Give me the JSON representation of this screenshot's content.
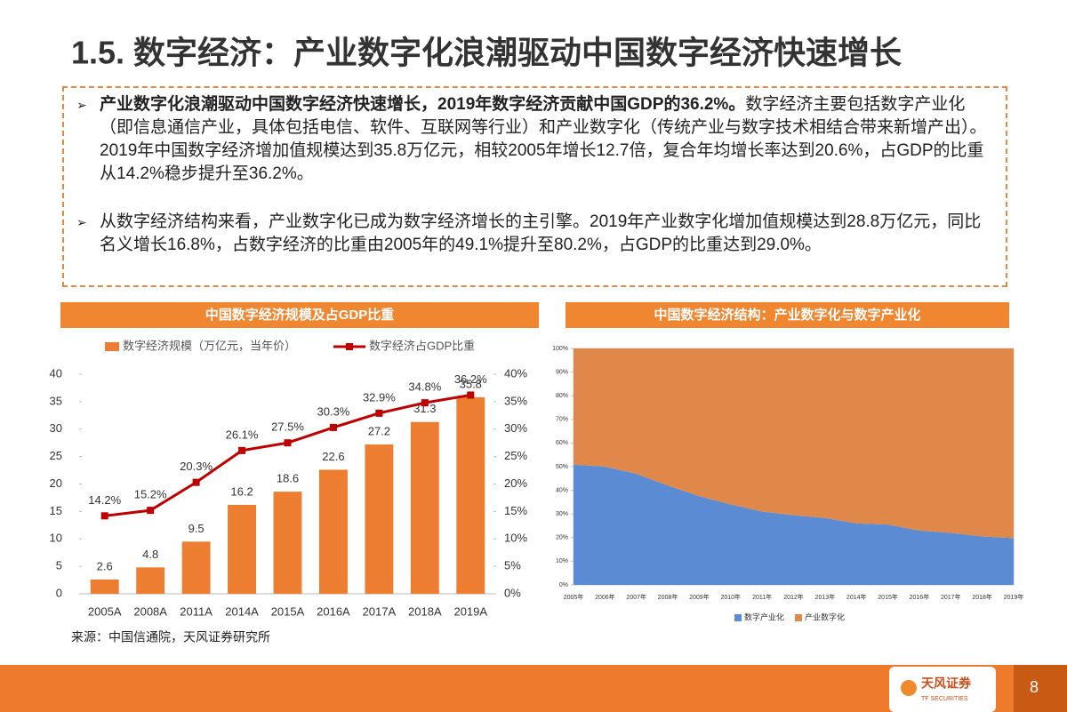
{
  "header": {
    "title": "1.5. 数字经济：产业数字化浪潮驱动中国数字经济快速增长"
  },
  "bullets": [
    {
      "bold": "产业数字化浪潮驱动中国数字经济快速增长，2019年数字经济贡献中国GDP的36.2%。",
      "text": "数字经济主要包括数字产业化（即信息通信产业，具体包括电信、软件、互联网等行业）和产业数字化（传统产业与数字技术相结合带来新增产出）。2019年中国数字经济增加值规模达到35.8万亿元，相较2005年增长12.7倍，复合年均增长率达到20.6%，占GDP的比重从14.2%稳步提升至36.2%。"
    },
    {
      "text": "从数字经济结构来看，产业数字化已成为数字经济增长的主引擎。2019年产业数字化增加值规模达到28.8万亿元，同比名义增长16.8%，占数字经济的比重由2005年的49.1%提升至80.2%，占GDP的比重达到29.0%。"
    }
  ],
  "chart_data": [
    {
      "type": "bar",
      "title": "中国数字经济规模及占GDP比重",
      "categories": [
        "2005A",
        "2008A",
        "2011A",
        "2014A",
        "2015A",
        "2016A",
        "2017A",
        "2018A",
        "2019A"
      ],
      "series": [
        {
          "name": "数字经济规模（万亿元，当年价）",
          "color": "#ED7D31",
          "values": [
            2.6,
            4.8,
            9.5,
            16.2,
            18.6,
            22.6,
            27.2,
            31.3,
            35.8
          ]
        },
        {
          "name": "数字经济占GDP比重",
          "type": "line",
          "axis": "y2",
          "color": "#C00000",
          "values": [
            14.2,
            15.2,
            20.3,
            26.1,
            27.5,
            30.3,
            32.9,
            34.8,
            36.2
          ],
          "value_labels": [
            "14.2%",
            "15.2%",
            "20.3%",
            "26.1%",
            "27.5%",
            "30.3%",
            "32.9%",
            "34.8%",
            "36.2%"
          ]
        }
      ],
      "ylim": [
        0,
        40
      ],
      "yticks": [
        0,
        5,
        10,
        15,
        20,
        25,
        30,
        35,
        40
      ],
      "y2lim": [
        0,
        40
      ],
      "y2ticks": [
        {
          "value": 0,
          "label": "0%"
        },
        {
          "value": 5,
          "label": "5%"
        },
        {
          "value": 10,
          "label": "10%"
        },
        {
          "value": 15,
          "label": "15%"
        },
        {
          "value": 20,
          "label": "20%"
        },
        {
          "value": 25,
          "label": "25%"
        },
        {
          "value": 30,
          "label": "30%"
        },
        {
          "value": 35,
          "label": "35%"
        },
        {
          "value": 40,
          "label": "40%"
        }
      ],
      "grid": false,
      "legend": "top"
    },
    {
      "type": "area",
      "stacked": true,
      "title": "中国数字经济结构：产业数字化与数字产业化",
      "categories": [
        "2005年",
        "2006年",
        "2007年",
        "2008年",
        "2009年",
        "2010年",
        "2011年",
        "2012年",
        "2013年",
        "2014年",
        "2015年",
        "2016年",
        "2017年",
        "2018年",
        "2019年"
      ],
      "series": [
        {
          "name": "数字产业化",
          "color": "#5B8BD3",
          "values": [
            50.9,
            50,
            47,
            42,
            37.5,
            34,
            31,
            29.5,
            28.3,
            26,
            25.5,
            23,
            22,
            20.5,
            19.8
          ]
        },
        {
          "name": "产业数字化",
          "color": "#E0874A",
          "values": [
            49.1,
            50,
            53,
            58,
            62.5,
            66,
            69,
            70.5,
            71.7,
            74,
            74.5,
            77,
            78,
            79.5,
            80.2
          ]
        }
      ],
      "ylim": [
        0,
        100
      ],
      "yticks": [
        {
          "value": 0,
          "label": "0%"
        },
        {
          "value": 10,
          "label": "10%"
        },
        {
          "value": 20,
          "label": "20%"
        },
        {
          "value": 30,
          "label": "30%"
        },
        {
          "value": 40,
          "label": "40%"
        },
        {
          "value": 50,
          "label": "50%"
        },
        {
          "value": 60,
          "label": "60%"
        },
        {
          "value": 70,
          "label": "70%"
        },
        {
          "value": 80,
          "label": "80%"
        },
        {
          "value": 90,
          "label": "90%"
        },
        {
          "value": 100,
          "label": "100%"
        }
      ],
      "grid": false,
      "legend": "bottom"
    }
  ],
  "source": "来源：中国信通院，天风证券研究所",
  "footer": {
    "brand": "天风证券",
    "brand_en": "TF SECURITIES",
    "page": 8
  }
}
